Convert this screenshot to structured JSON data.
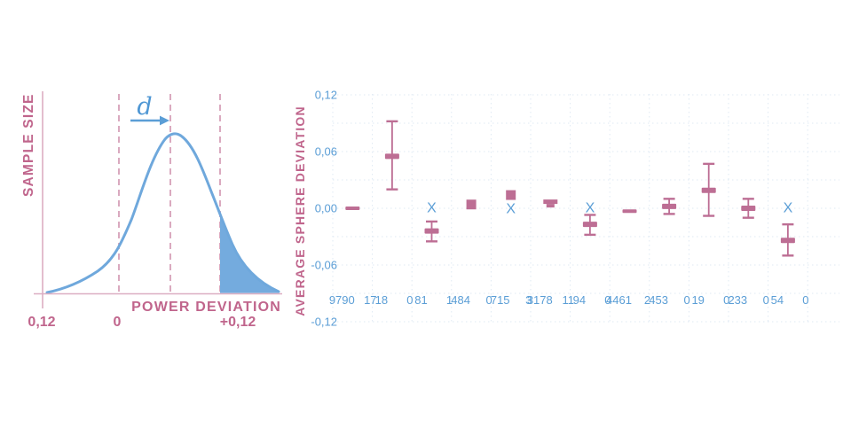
{
  "colors": {
    "background": "#ffffff",
    "pink_text": "#c0658c",
    "pink_marker": "#bd6e94",
    "pink_axis": "#dcaec2",
    "pink_dashed": "#d6a0b8",
    "blue_curve": "#6fa8dc",
    "blue_fill": "#74abde",
    "blue_text": "#5b9ed6",
    "grid": "#dfe9f3"
  },
  "chart_data": [
    {
      "type": "area",
      "panel": "power-deviation-distribution",
      "ylabel": "SAMPLE SIZE",
      "xlabel": "POWER DEVIATION",
      "effect_label": "d",
      "x_tick_labels": [
        "0,12",
        "0",
        "+0,12"
      ],
      "curve": "right-skewed bell curve peaking between 0 and +0,12",
      "dashed_vertical_lines": 3,
      "shaded_region": "right tail of curve beyond the +0,12 dashed line, filled blue",
      "annotation": "blue right arrow labeled d between first and second dashed lines"
    },
    {
      "type": "scatter",
      "panel": "average-sphere-deviation",
      "ylabel": "AVERAGE SPHERE DEVIATION",
      "ylim": [
        -0.12,
        0.12
      ],
      "grid": "dotted",
      "legend_position": "none",
      "y_ticks": [
        {
          "label": "0,12",
          "value": 0.12
        },
        {
          "label": "0,06",
          "value": 0.06
        },
        {
          "label": "0,00",
          "value": 0.0
        },
        {
          "label": "-0,06",
          "value": -0.06
        },
        {
          "label": "-0,12",
          "value": -0.12
        }
      ],
      "groups": [
        {
          "count": "9790",
          "count2": "17",
          "markers": [
            {
              "type": "dash",
              "y": 0.0
            }
          ]
        },
        {
          "count": "18",
          "count2": "0",
          "markers": [
            {
              "type": "errbar",
              "y": 0.055,
              "lo": 0.02,
              "hi": 0.092
            }
          ]
        },
        {
          "count": "81",
          "count2": "1",
          "markers": [
            {
              "type": "x",
              "y": 0.001
            },
            {
              "type": "errbar",
              "y": -0.024,
              "lo": -0.035,
              "hi": -0.014
            }
          ]
        },
        {
          "count": "484",
          "count2": "0",
          "markers": [
            {
              "type": "square",
              "y": 0.004
            }
          ]
        },
        {
          "count": "715",
          "count2": "3",
          "markers": [
            {
              "type": "square",
              "y": 0.014
            },
            {
              "type": "x",
              "y": 0.0
            }
          ]
        },
        {
          "count": "3178",
          "count2": "11",
          "markers": [
            {
              "type": "tmark",
              "y": 0.006
            }
          ]
        },
        {
          "count": "94",
          "count2": "0",
          "markers": [
            {
              "type": "x",
              "y": 0.001
            },
            {
              "type": "errbar",
              "y": -0.017,
              "lo": -0.028,
              "hi": -0.007
            }
          ]
        },
        {
          "count": "4461",
          "count2": "2",
          "markers": [
            {
              "type": "dash",
              "y": -0.003
            }
          ]
        },
        {
          "count": "453",
          "count2": "0",
          "markers": [
            {
              "type": "errbar",
              "y": 0.002,
              "lo": -0.006,
              "hi": 0.01
            }
          ]
        },
        {
          "count": "19",
          "count2": "0",
          "markers": [
            {
              "type": "errbar",
              "y": 0.019,
              "lo": -0.008,
              "hi": 0.047
            }
          ]
        },
        {
          "count": "233",
          "count2": "0",
          "markers": [
            {
              "type": "errbar",
              "y": 0.0,
              "lo": -0.01,
              "hi": 0.01
            }
          ]
        },
        {
          "count": "54",
          "count2": "0",
          "markers": [
            {
              "type": "x",
              "y": 0.001
            },
            {
              "type": "errbar",
              "y": -0.034,
              "lo": -0.05,
              "hi": -0.017
            }
          ]
        }
      ]
    }
  ]
}
